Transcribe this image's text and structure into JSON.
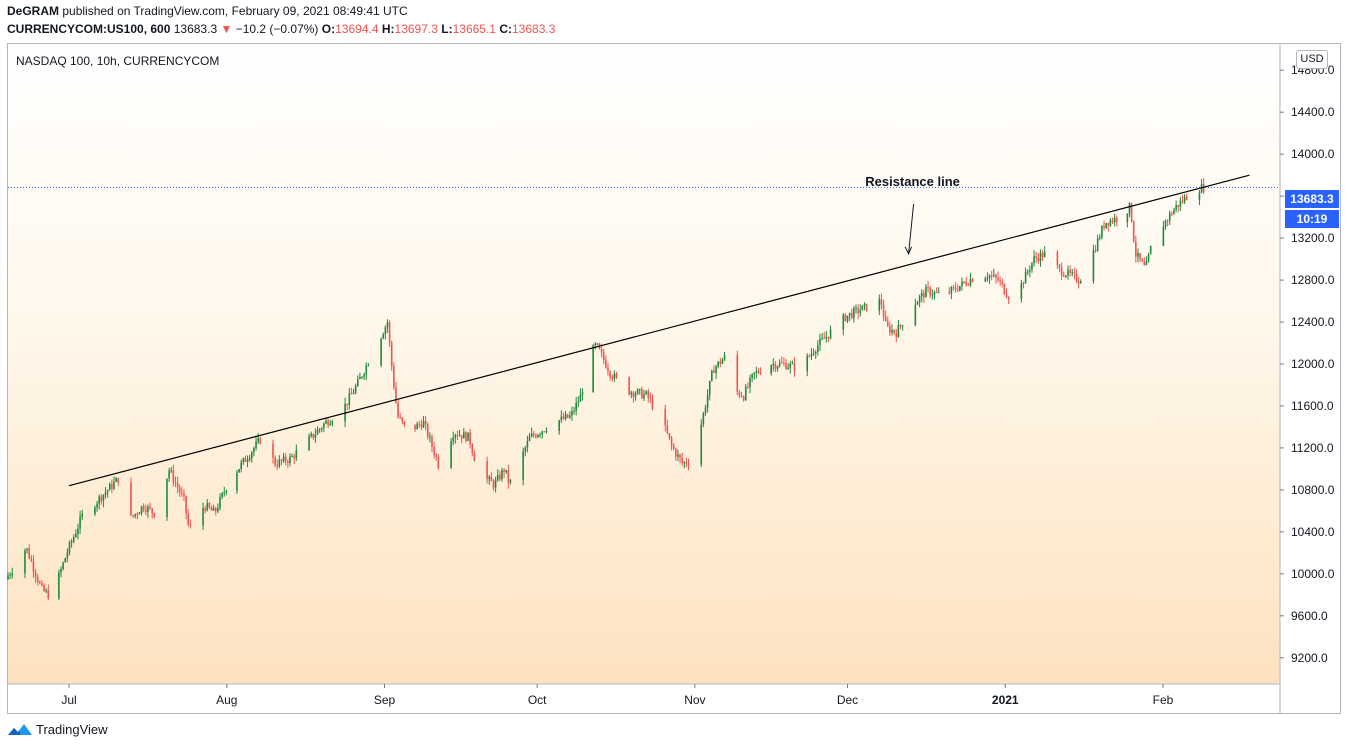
{
  "header": {
    "author": "DeGRAM",
    "published": "published on TradingView.com, February 09, 2021 08:49:41 UTC",
    "symbol": "CURRENCYCOM:US100, 600",
    "last": "13683.3",
    "change": "−10.2 (−0.07%)",
    "o_label": "O:",
    "o_value": "13694.4",
    "h_label": "H:",
    "h_value": "13697.3",
    "l_label": "L:",
    "l_value": "13665.1",
    "c_label": "C:",
    "c_value": "13683.3"
  },
  "chart_title": "NASDAQ 100, 10h, CURRENCYCOM",
  "currency": "USD",
  "last_price": "13683.3",
  "countdown": "10:19",
  "footer_brand": "TradingView",
  "colors": {
    "up": "#26a69a",
    "up_dark": "#1e8a3a",
    "down": "#ef5350",
    "badge": "#2962ff",
    "line": "#000000"
  },
  "chart_data": {
    "type": "candlestick",
    "ylim": [
      8950,
      15050
    ],
    "yticks": [
      9200,
      9600,
      10000,
      10400,
      10800,
      11200,
      11600,
      12000,
      12400,
      12800,
      13200,
      13600,
      14000,
      14400,
      14800
    ],
    "ytick_labels": [
      "9200.0",
      "9600.0",
      "10000.0",
      "10400.0",
      "10800.0",
      "11200.0",
      "11600.0",
      "12000.0",
      "12400.0",
      "12800.0",
      "13200.0",
      "13600.0",
      "14000.0",
      "14400.0",
      "14800.0"
    ],
    "xticks": [
      {
        "label": "Jul",
        "date": "2020-07-01"
      },
      {
        "label": "Aug",
        "date": "2020-08-01"
      },
      {
        "label": "Sep",
        "date": "2020-09-01"
      },
      {
        "label": "Oct",
        "date": "2020-10-01"
      },
      {
        "label": "Nov",
        "date": "2020-11-01"
      },
      {
        "label": "Dec",
        "date": "2020-12-01"
      },
      {
        "label": "2021",
        "date": "2021-01-01"
      },
      {
        "label": "Feb",
        "date": "2021-02-01"
      }
    ],
    "xrange": [
      "2020-06-19",
      "2021-02-24"
    ],
    "anchors": [
      [
        "2020-06-19",
        9950
      ],
      [
        "2020-06-23",
        10250
      ],
      [
        "2020-06-26",
        9850
      ],
      [
        "2020-06-28",
        9780
      ],
      [
        "2020-07-01",
        10200
      ],
      [
        "2020-07-04",
        10550
      ],
      [
        "2020-07-08",
        10750
      ],
      [
        "2020-07-12",
        10950
      ],
      [
        "2020-07-13",
        10500
      ],
      [
        "2020-07-16",
        10650
      ],
      [
        "2020-07-19",
        10550
      ],
      [
        "2020-07-21",
        11000
      ],
      [
        "2020-07-24",
        10700
      ],
      [
        "2020-07-25",
        10420
      ],
      [
        "2020-07-28",
        10650
      ],
      [
        "2020-07-30",
        10580
      ],
      [
        "2020-08-02",
        10900
      ],
      [
        "2020-08-06",
        11150
      ],
      [
        "2020-08-08",
        11280
      ],
      [
        "2020-08-11",
        11050
      ],
      [
        "2020-08-14",
        11100
      ],
      [
        "2020-08-17",
        11250
      ],
      [
        "2020-08-21",
        11450
      ],
      [
        "2020-08-24",
        11550
      ],
      [
        "2020-08-27",
        11800
      ],
      [
        "2020-08-30",
        12100
      ],
      [
        "2020-09-02",
        12400
      ],
      [
        "2020-09-03",
        11900
      ],
      [
        "2020-09-04",
        11500
      ],
      [
        "2020-09-06",
        11350
      ],
      [
        "2020-09-09",
        11450
      ],
      [
        "2020-09-12",
        11050
      ],
      [
        "2020-09-15",
        11350
      ],
      [
        "2020-09-18",
        11300
      ],
      [
        "2020-09-20",
        10950
      ],
      [
        "2020-09-23",
        10850
      ],
      [
        "2020-09-25",
        11000
      ],
      [
        "2020-09-26",
        10850
      ],
      [
        "2020-09-30",
        11300
      ],
      [
        "2020-10-05",
        11450
      ],
      [
        "2020-10-08",
        11500
      ],
      [
        "2020-10-10",
        11700
      ],
      [
        "2020-10-12",
        12100
      ],
      [
        "2020-10-13",
        12180
      ],
      [
        "2020-10-16",
        11900
      ],
      [
        "2020-10-19",
        11750
      ],
      [
        "2020-10-23",
        11700
      ],
      [
        "2020-10-26",
        11450
      ],
      [
        "2020-10-28",
        11200
      ],
      [
        "2020-10-30",
        11050
      ],
      [
        "2020-11-01",
        11100
      ],
      [
        "2020-11-03",
        11500
      ],
      [
        "2020-11-05",
        11950
      ],
      [
        "2020-11-08",
        12100
      ],
      [
        "2020-11-09",
        11750
      ],
      [
        "2020-11-11",
        11700
      ],
      [
        "2020-11-13",
        11900
      ],
      [
        "2020-11-16",
        12000
      ],
      [
        "2020-11-19",
        12000
      ],
      [
        "2020-11-22",
        11950
      ],
      [
        "2020-11-25",
        12150
      ],
      [
        "2020-11-28",
        12300
      ],
      [
        "2020-12-01",
        12450
      ],
      [
        "2020-12-04",
        12520
      ],
      [
        "2020-12-08",
        12600
      ],
      [
        "2020-12-09",
        12350
      ],
      [
        "2020-12-11",
        12300
      ],
      [
        "2020-12-14",
        12550
      ],
      [
        "2020-12-17",
        12700
      ],
      [
        "2020-12-20",
        12650
      ],
      [
        "2020-12-22",
        12700
      ],
      [
        "2020-12-26",
        12820
      ],
      [
        "2020-12-29",
        12850
      ],
      [
        "2020-12-31",
        12800
      ],
      [
        "2021-01-02",
        12650
      ],
      [
        "2021-01-04",
        12700
      ],
      [
        "2021-01-07",
        13000
      ],
      [
        "2021-01-09",
        13050
      ],
      [
        "2021-01-12",
        12900
      ],
      [
        "2021-01-14",
        12850
      ],
      [
        "2021-01-16",
        12800
      ],
      [
        "2021-01-19",
        13100
      ],
      [
        "2021-01-21",
        13350
      ],
      [
        "2021-01-24",
        13400
      ],
      [
        "2021-01-26",
        13500
      ],
      [
        "2021-01-27",
        13050
      ],
      [
        "2021-01-29",
        12900
      ],
      [
        "2021-01-30",
        13100
      ],
      [
        "2021-02-01",
        13300
      ],
      [
        "2021-02-04",
        13500
      ],
      [
        "2021-02-07",
        13640
      ],
      [
        "2021-02-09",
        13683
      ]
    ],
    "resistance_line": [
      [
        "2020-07-01",
        10840
      ],
      [
        "2021-02-18",
        13800
      ]
    ],
    "annotations": [
      {
        "text": "Resistance line",
        "pointer": [
          "2020-12-13",
          13050
        ]
      }
    ],
    "last_value": 13683.3
  }
}
